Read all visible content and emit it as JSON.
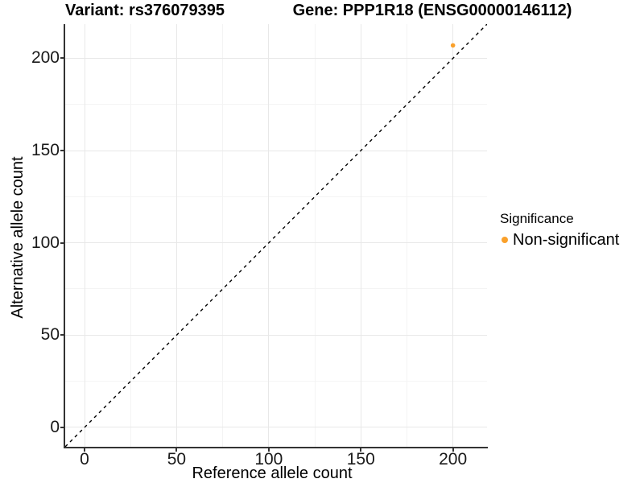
{
  "chart_data": {
    "type": "scatter",
    "title_left": "Variant: rs376079395",
    "title_right": "Gene: PPP1R18 (ENSG00000146112)",
    "xlabel": "Reference allele count",
    "ylabel": "Alternative allele count",
    "xlim": [
      -10.5,
      218.5
    ],
    "ylim": [
      -10.5,
      218.5
    ],
    "xticks": [
      0,
      50,
      100,
      150,
      200
    ],
    "yticks": [
      0,
      50,
      100,
      150,
      200
    ],
    "x_minor": [
      25,
      75,
      125,
      175
    ],
    "y_minor": [
      25,
      75,
      125,
      175
    ],
    "grid": "major and minor gridlines on white background",
    "points": [
      {
        "x": 200,
        "y": 207,
        "series": "Non-significant",
        "color": "#FAA12B"
      }
    ],
    "identity_line": {
      "equation": "y = x",
      "style": "dashed",
      "color": "#000000",
      "from": [
        -10.5,
        -10.5
      ],
      "to": [
        218.5,
        218.5
      ]
    },
    "legend": {
      "position": "right",
      "title": "Significance",
      "items": [
        {
          "label": "Non-significant",
          "color": "#FAA12B",
          "marker": "filled-circle"
        }
      ]
    }
  },
  "colors": {
    "point_orange": "#FAA12B",
    "grid_major": "#E8E8E8",
    "grid_minor": "#F4F4F4",
    "axis_line": "#333333",
    "background": "#FFFFFF"
  }
}
